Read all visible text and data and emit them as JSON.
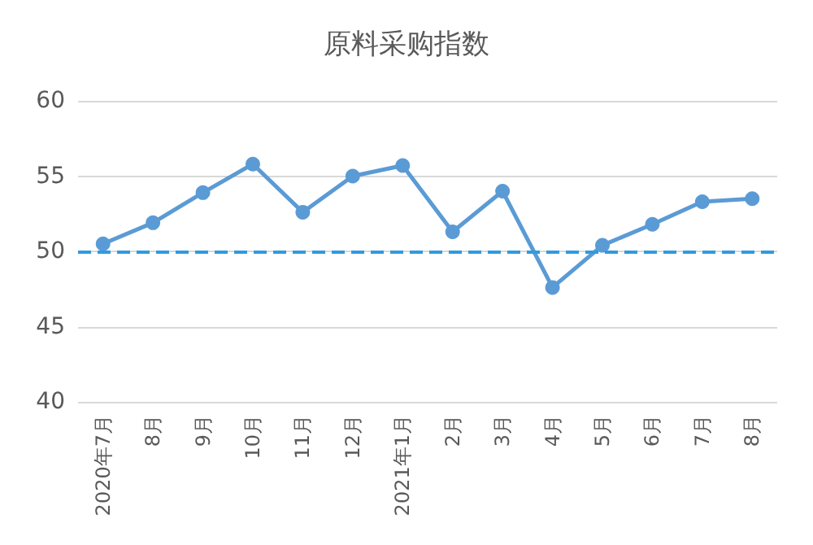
{
  "chart_data": {
    "type": "line",
    "title": "原料采购指数",
    "categories": [
      "2020年7月",
      "8月",
      "9月",
      "10月",
      "11月",
      "12月",
      "2021年1月",
      "2月",
      "3月",
      "4月",
      "5月",
      "6月",
      "7月",
      "8月"
    ],
    "series": [
      {
        "color": "#5b9bd5",
        "values": [
          50.5,
          51.9,
          53.9,
          55.8,
          52.6,
          55.0,
          55.7,
          51.3,
          54.0,
          47.6,
          50.4,
          51.8,
          53.3,
          53.5
        ]
      }
    ],
    "ylim": [
      40,
      60
    ],
    "yticks": [
      40,
      45,
      50,
      55,
      60
    ],
    "ref_lines": [
      {
        "axis": "y",
        "value": 50,
        "color": "#2f9be0",
        "line_style": "dashed"
      }
    ],
    "grid": "y",
    "marker": "circle",
    "line_style": "solid"
  }
}
